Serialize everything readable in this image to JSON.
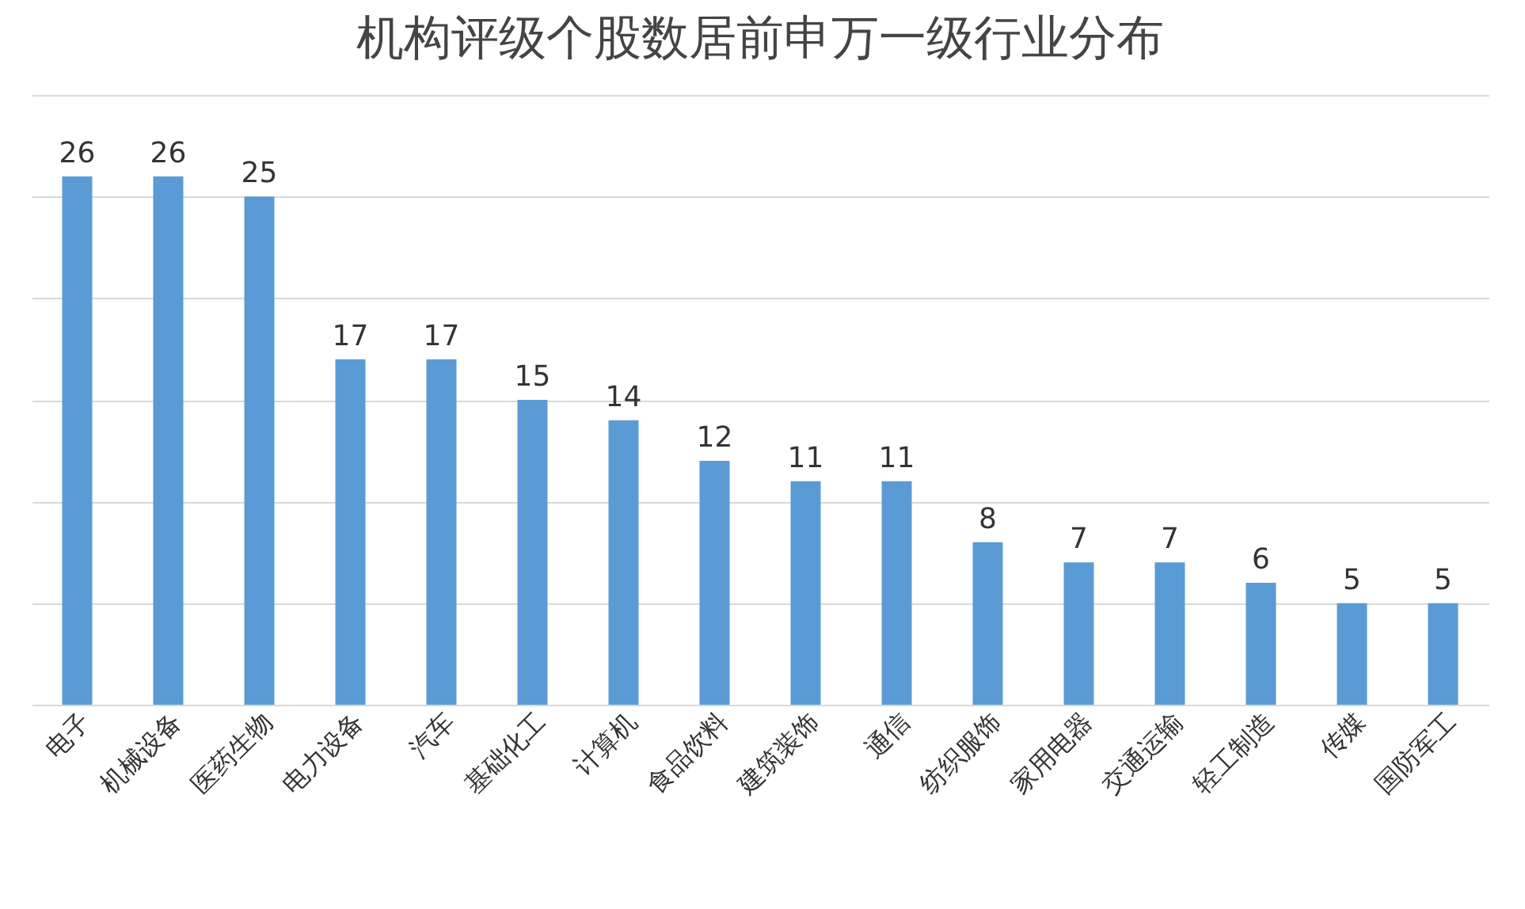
{
  "chart_data": {
    "type": "bar",
    "title": "机构评级个股数居前申万一级行业分布",
    "categories": [
      "电子",
      "机械设备",
      "医药生物",
      "电力设备",
      "汽车",
      "基础化工",
      "计算机",
      "食品饮料",
      "建筑装饰",
      "通信",
      "纺织服饰",
      "家用电器",
      "交通运输",
      "轻工制造",
      "传媒",
      "国防军工"
    ],
    "values": [
      26,
      26,
      25,
      17,
      17,
      15,
      14,
      12,
      11,
      11,
      8,
      7,
      7,
      6,
      5,
      5
    ],
    "color": "#5b9bd5",
    "ylim": [
      0,
      30
    ],
    "yticks": [
      {
        "value": 0,
        "label": null
      },
      {
        "value": 5,
        "label": null
      },
      {
        "value": 10,
        "label": null
      },
      {
        "value": 15,
        "label": null
      },
      {
        "value": 20,
        "label": null
      },
      {
        "value": 25,
        "label": null
      },
      {
        "value": 30,
        "label": null
      }
    ],
    "grid": "y",
    "tick_labels": "x",
    "data_labels": true
  }
}
